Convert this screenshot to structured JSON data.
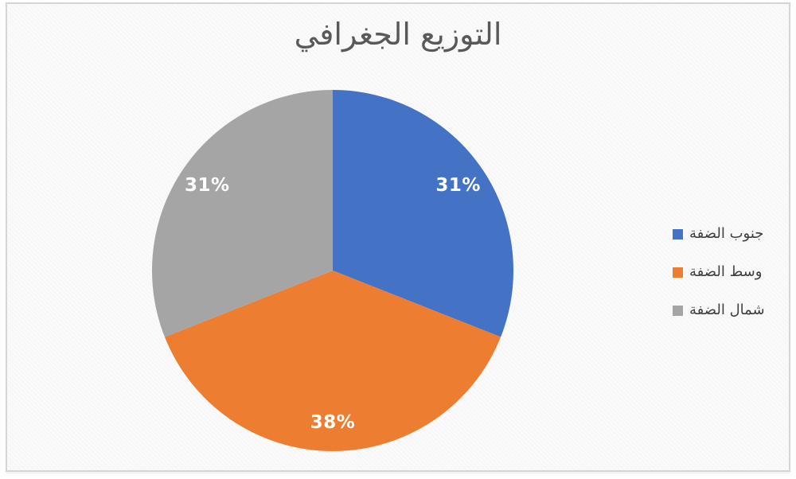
{
  "chart_data": {
    "type": "pie",
    "title": "التوزيع الجغرافي",
    "categories": [
      "جنوب الضفة",
      "وسط الضفة",
      "شمال الضفة"
    ],
    "values": [
      31,
      38,
      31
    ],
    "unit": "percent",
    "start_angle_deg": 0,
    "direction": "clockwise",
    "legend_position": "right",
    "slices": [
      {
        "label": "جنوب الضفة",
        "value": 31,
        "data_label": "31%",
        "color": "#4472C4"
      },
      {
        "label": "وسط الضفة",
        "value": 38,
        "data_label": "38%",
        "color": "#ED7D31"
      },
      {
        "label": "شمال الضفة",
        "value": 31,
        "data_label": "31%",
        "color": "#A5A5A5"
      }
    ],
    "colors": {
      "data_label_text": "#FFFFFF",
      "title_text": "#595959",
      "legend_text": "#3F3F3F",
      "frame_border": "#D5D5D5"
    }
  }
}
